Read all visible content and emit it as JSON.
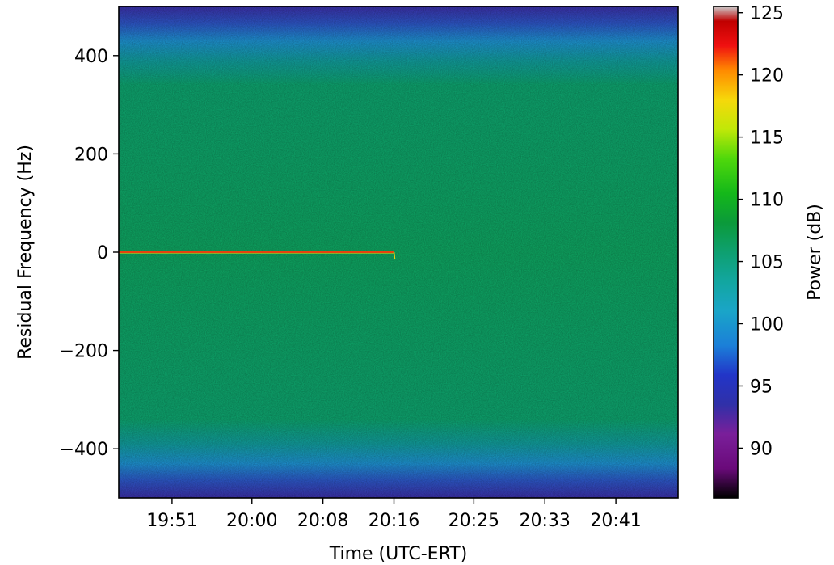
{
  "chart_data": {
    "type": "heatmap",
    "title": "",
    "xlabel": "Time (UTC-ERT)",
    "ylabel": "Residual Frequency (Hz)",
    "x_ticks": [
      "19:51",
      "20:00",
      "20:08",
      "20:16",
      "20:25",
      "20:33",
      "20:41"
    ],
    "y_ticks": [
      400,
      200,
      0,
      -200,
      -400
    ],
    "y_tick_labels": [
      "400",
      "200",
      "0",
      "−200",
      "−400"
    ],
    "ylim": [
      -500,
      500
    ],
    "xlim": [
      "19:45",
      "20:48"
    ],
    "colorbar": {
      "label": "Power (dB)",
      "range": [
        86,
        125.5
      ],
      "ticks": [
        90,
        95,
        100,
        105,
        110,
        115,
        120,
        125
      ],
      "tick_labels": [
        "90",
        "95",
        "100",
        "105",
        "110",
        "115",
        "120",
        "125"
      ],
      "colormap": "nipy_spectral"
    },
    "background_power_db": {
      "center_band": 104,
      "band_edge_near_400hz": 100,
      "band_edge_extreme": 93
    },
    "signal": {
      "frequency_hz": 0,
      "start_time": "19:45",
      "end_time": "20:16",
      "power_db": 121
    }
  }
}
